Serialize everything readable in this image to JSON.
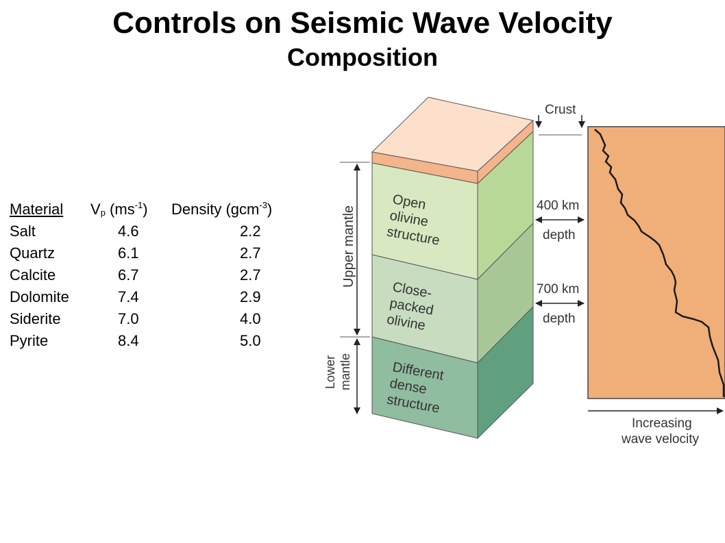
{
  "title": "Controls on Seismic Wave Velocity",
  "subtitle": "Composition",
  "table": {
    "headers": {
      "material": "Material",
      "vp_main": "V",
      "vp_sub": "p",
      "vp_unit_open": "(ms",
      "vp_unit_sup": "-1",
      "vp_unit_close": ")",
      "density_main": "Density (gcm",
      "density_sup": "-3",
      "density_close": ")"
    },
    "rows": [
      {
        "material": "Salt",
        "vp": "4.6",
        "density": "2.2"
      },
      {
        "material": "Quartz",
        "vp": "6.1",
        "density": "2.7"
      },
      {
        "material": "Calcite",
        "vp": "6.7",
        "density": "2.7"
      },
      {
        "material": "Dolomite",
        "vp": "7.4",
        "density": "2.9"
      },
      {
        "material": "Siderite",
        "vp": "7.0",
        "density": "4.0"
      },
      {
        "material": "Pyrite",
        "vp": "8.4",
        "density": "5.0"
      }
    ]
  },
  "diagram": {
    "labels": {
      "crust": "Crust",
      "upper_mantle": "Upper mantle",
      "lower_mantle_1": "Lower",
      "lower_mantle_2": "mantle",
      "layer1": [
        "Open",
        "olivine",
        "structure"
      ],
      "layer2": [
        "Close-",
        "packed",
        "olivine"
      ],
      "layer3": [
        "Different",
        "dense",
        "structure"
      ],
      "depth400_1": "400 km",
      "depth400_2": "depth",
      "depth700_1": "700 km",
      "depth700_2": "depth",
      "velocity_1": "Increasing",
      "velocity_2": "wave velocity"
    },
    "colors": {
      "crust_top": "#fde0cc",
      "crust_band": "#f4b48c",
      "layer1_front": "#d8e8c0",
      "layer1_side": "#b8d898",
      "layer2_front": "#c8dcc0",
      "layer2_side": "#a8c898",
      "layer3_front": "#90bca0",
      "layer3_side": "#60a080",
      "plot_bg": "#f0ae78"
    }
  }
}
